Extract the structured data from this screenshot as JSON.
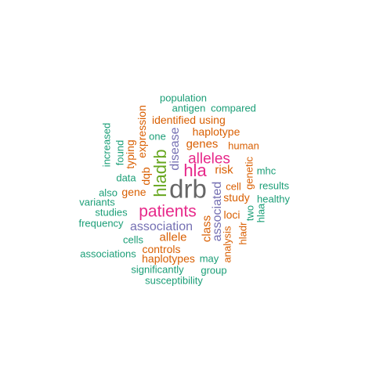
{
  "palette": {
    "teal": "#1b9e77",
    "orange": "#d95f02",
    "purple": "#7570b3",
    "magenta": "#e7298a",
    "olive": "#66a61e",
    "gray": "#666666"
  },
  "words": [
    {
      "text": "drb",
      "color": "gray"
    },
    {
      "text": "patients",
      "color": "magenta"
    },
    {
      "text": "hla",
      "color": "magenta"
    },
    {
      "text": "hladrb",
      "color": "olive"
    },
    {
      "text": "alleles",
      "color": "magenta"
    },
    {
      "text": "association",
      "color": "purple"
    },
    {
      "text": "associated",
      "color": "purple"
    },
    {
      "text": "disease",
      "color": "purple"
    },
    {
      "text": "genes",
      "color": "orange"
    },
    {
      "text": "allele",
      "color": "orange"
    },
    {
      "text": "haplotype",
      "color": "orange"
    },
    {
      "text": "risk",
      "color": "orange"
    },
    {
      "text": "class",
      "color": "orange"
    },
    {
      "text": "gene",
      "color": "orange"
    },
    {
      "text": "study",
      "color": "orange"
    },
    {
      "text": "controls",
      "color": "orange"
    },
    {
      "text": "haplotypes",
      "color": "orange"
    },
    {
      "text": "loci",
      "color": "orange"
    },
    {
      "text": "dqb",
      "color": "orange"
    },
    {
      "text": "typing",
      "color": "orange"
    },
    {
      "text": "expression",
      "color": "orange"
    },
    {
      "text": "identified",
      "color": "orange"
    },
    {
      "text": "using",
      "color": "orange"
    },
    {
      "text": "human",
      "color": "orange"
    },
    {
      "text": "cell",
      "color": "orange"
    },
    {
      "text": "genetic",
      "color": "orange"
    },
    {
      "text": "analysis",
      "color": "orange"
    },
    {
      "text": "hladr",
      "color": "orange"
    },
    {
      "text": "population",
      "color": "teal"
    },
    {
      "text": "antigen",
      "color": "teal"
    },
    {
      "text": "compared",
      "color": "teal"
    },
    {
      "text": "increased",
      "color": "teal"
    },
    {
      "text": "found",
      "color": "teal"
    },
    {
      "text": "one",
      "color": "teal"
    },
    {
      "text": "data",
      "color": "teal"
    },
    {
      "text": "also",
      "color": "teal"
    },
    {
      "text": "variants",
      "color": "teal"
    },
    {
      "text": "studies",
      "color": "teal"
    },
    {
      "text": "frequency",
      "color": "teal"
    },
    {
      "text": "cells",
      "color": "teal"
    },
    {
      "text": "associations",
      "color": "teal"
    },
    {
      "text": "significantly",
      "color": "teal"
    },
    {
      "text": "susceptibility",
      "color": "teal"
    },
    {
      "text": "may",
      "color": "teal"
    },
    {
      "text": "group",
      "color": "teal"
    },
    {
      "text": "mhc",
      "color": "teal"
    },
    {
      "text": "results",
      "color": "teal"
    },
    {
      "text": "healthy",
      "color": "teal"
    },
    {
      "text": "two",
      "color": "teal"
    },
    {
      "text": "hlaa",
      "color": "teal"
    }
  ]
}
